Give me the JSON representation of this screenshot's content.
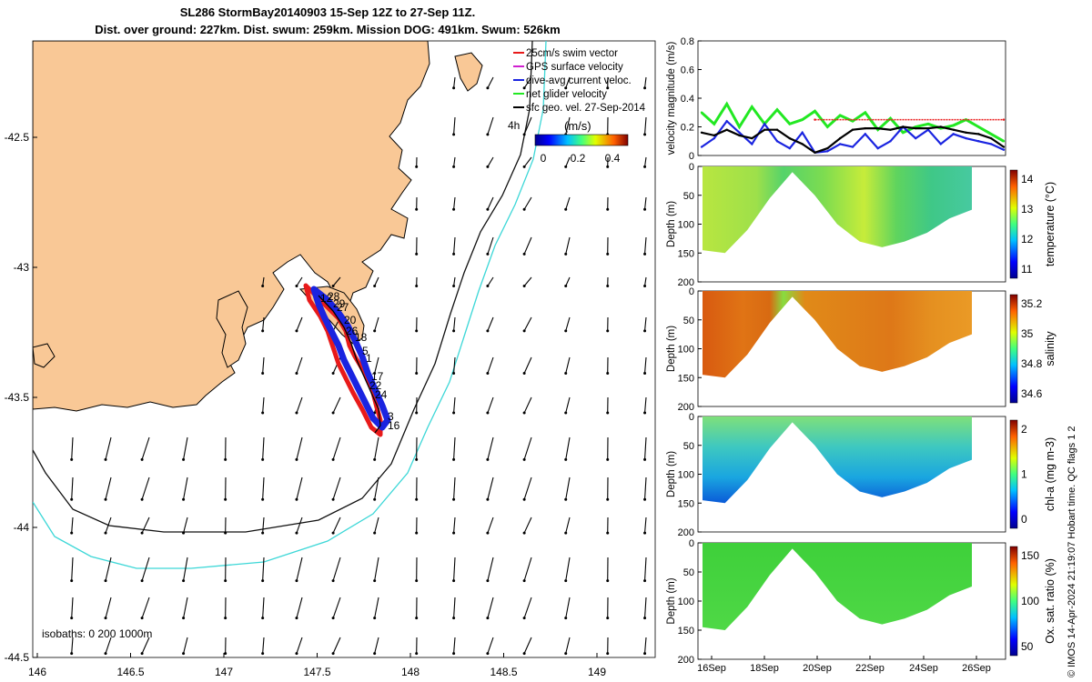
{
  "header": {
    "title": "SL286 StormBay20140903 15-Sep 12Z to 27-Sep 11Z.",
    "subtitle": "Dist. over ground: 227km. Dist. swum: 259km. Mission DOG: 491km. Swum: 526km"
  },
  "credit": "© IMOS 14-Apr-2024 21:19:07 Hobart time. QC flags 1  2",
  "colors": {
    "land": "#f9c896",
    "isobath_200": "#111111",
    "isobath_1000": "#3cd7d7",
    "track": "#0a10d8",
    "swim": "#e81a1a",
    "gps": "#d020d0",
    "dive": "#1a24e0",
    "net": "#22e822",
    "velocity_line": "#000000"
  },
  "map": {
    "x_ticks": [
      "146",
      "146.5",
      "147",
      "147.5",
      "148",
      "148.5",
      "149"
    ],
    "y_ticks": [
      "-42.5",
      "-43",
      "-43.5",
      "-44",
      "-44.5"
    ],
    "isobaths_label": "isobaths: 0   200  1000m",
    "time_label": "4h",
    "legend": [
      {
        "label": "25cm/s swim vector",
        "color": "#e81a1a"
      },
      {
        "label": "GPS surface velocity",
        "color": "#d020d0"
      },
      {
        "label": "dive-avg current veloc.",
        "color": "#1a24e0"
      },
      {
        "label": "net glider velocity",
        "color": "#22e822"
      },
      {
        "label": "sfc geo. vel. 27-Sep-2014",
        "color": "#000000"
      }
    ],
    "colorbar": {
      "unit": "(m/s)",
      "ticks": [
        "0",
        "0.2",
        "0.4"
      ]
    },
    "day_labels": [
      "12",
      "28",
      "29",
      "27",
      "20",
      "26",
      "18",
      "5",
      "1",
      "17",
      "22",
      "24",
      "3",
      "16"
    ]
  },
  "chart_data": [
    {
      "type": "line",
      "ylabel": "velocity magnitude (m/s)",
      "ylim": [
        0,
        0.8
      ],
      "y_ticks": [
        "0",
        "0.2",
        "0.4",
        "0.6",
        "0.8"
      ],
      "x_range": [
        "15-Sep 12Z",
        "27-Sep 11Z"
      ],
      "series": [
        {
          "name": "net glider velocity",
          "color": "#22e822",
          "x": [
            0,
            0.5,
            1,
            1.5,
            2,
            2.5,
            3,
            3.5,
            4,
            4.5,
            5,
            5.5,
            6,
            6.5,
            7,
            7.5,
            8,
            8.5,
            9,
            9.5,
            10,
            10.5,
            11,
            11.5,
            12
          ],
          "values": [
            0.3,
            0.22,
            0.36,
            0.2,
            0.34,
            0.22,
            0.32,
            0.22,
            0.25,
            0.31,
            0.2,
            0.28,
            0.24,
            0.3,
            0.18,
            0.26,
            0.16,
            0.2,
            0.22,
            0.19,
            0.21,
            0.25,
            0.2,
            0.15,
            0.1
          ]
        },
        {
          "name": "dive-avg current veloc.",
          "color": "#1a24e0",
          "x": [
            0,
            0.5,
            1,
            1.5,
            2,
            2.5,
            3,
            3.5,
            4,
            4.5,
            5,
            5.5,
            6,
            6.5,
            7,
            7.5,
            8,
            8.5,
            9,
            9.5,
            10,
            10.5,
            11,
            11.5,
            12
          ],
          "values": [
            0.06,
            0.12,
            0.24,
            0.16,
            0.08,
            0.22,
            0.1,
            0.05,
            0.16,
            0.02,
            0.03,
            0.08,
            0.06,
            0.15,
            0.05,
            0.1,
            0.2,
            0.12,
            0.18,
            0.08,
            0.15,
            0.12,
            0.1,
            0.08,
            0.04
          ]
        },
        {
          "name": "sfc geo. vel. 27-Sep-2014",
          "color": "#000000",
          "x": [
            0,
            0.5,
            1,
            1.5,
            2,
            2.5,
            3,
            3.5,
            4,
            4.5,
            5,
            5.5,
            6,
            6.5,
            7,
            7.5,
            8,
            8.5,
            9,
            9.5,
            10,
            10.5,
            11,
            11.5,
            12
          ],
          "values": [
            0.16,
            0.14,
            0.18,
            0.14,
            0.12,
            0.18,
            0.18,
            0.12,
            0.08,
            0.02,
            0.05,
            0.12,
            0.18,
            0.19,
            0.19,
            0.18,
            0.2,
            0.19,
            0.19,
            0.2,
            0.18,
            0.16,
            0.15,
            0.12,
            0.06
          ]
        },
        {
          "name": "25cm/s swim vector",
          "color": "#e81a1a",
          "x": [
            4.5,
            12
          ],
          "values": [
            0.25,
            0.25
          ]
        }
      ]
    },
    {
      "type": "heatmap",
      "ylabel": "Depth (m)",
      "colorbar_label": "temperature (°C)",
      "cbar_ticks": [
        "14",
        "13",
        "12",
        "11"
      ],
      "y_ticks": [
        "0",
        "50",
        "100",
        "150",
        "200"
      ],
      "bottom_depth_profile": [
        145,
        150,
        110,
        55,
        10,
        50,
        100,
        130,
        140,
        130,
        115,
        90,
        75
      ]
    },
    {
      "type": "heatmap",
      "ylabel": "Depth (m)",
      "colorbar_label": "salinity",
      "cbar_ticks": [
        "35.2",
        "35",
        "34.8",
        "34.6"
      ],
      "y_ticks": [
        "0",
        "50",
        "100",
        "150",
        "200"
      ],
      "bottom_depth_profile": [
        145,
        150,
        110,
        55,
        10,
        50,
        100,
        130,
        140,
        130,
        115,
        90,
        75
      ]
    },
    {
      "type": "heatmap",
      "ylabel": "Depth (m)",
      "colorbar_label": "chl-a (mg m-3)",
      "cbar_ticks": [
        "2",
        "1",
        "0"
      ],
      "y_ticks": [
        "0",
        "50",
        "100",
        "150",
        "200"
      ],
      "bottom_depth_profile": [
        145,
        150,
        110,
        55,
        10,
        50,
        100,
        130,
        140,
        130,
        115,
        90,
        75
      ]
    },
    {
      "type": "heatmap",
      "ylabel": "Depth (m)",
      "colorbar_label": "Ox. sat. ratio (%)",
      "cbar_ticks": [
        "150",
        "100",
        "50"
      ],
      "y_ticks": [
        "0",
        "50",
        "100",
        "150",
        "200"
      ],
      "x_ticks": [
        "16Sep",
        "18Sep",
        "20Sep",
        "22Sep",
        "24Sep",
        "26Sep"
      ],
      "bottom_depth_profile": [
        145,
        150,
        110,
        55,
        10,
        50,
        100,
        130,
        140,
        130,
        115,
        90,
        75
      ]
    }
  ]
}
